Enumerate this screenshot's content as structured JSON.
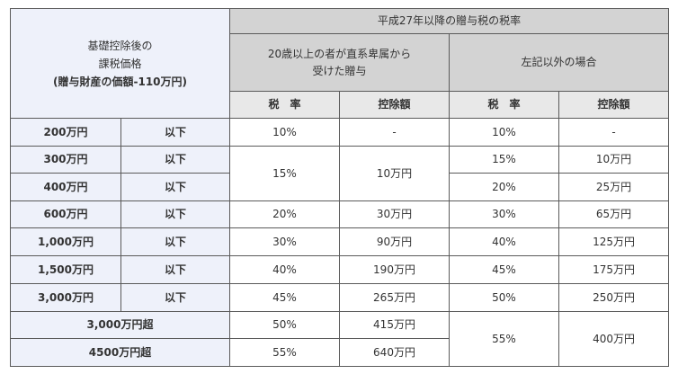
{
  "header": {
    "base_title_line1": "基礎控除後の",
    "base_title_line2": "課税価格",
    "base_title_line3": "(贈与財産の価額-110万円)",
    "top_title": "平成27年以降の贈与税の税率",
    "group_special_line1": "20歳以上の者が直系卑属から",
    "group_special_line2": "受けた贈与",
    "group_general": "左記以外の場合",
    "col_rate": "税　率",
    "col_deduction": "控除額"
  },
  "rows": [
    {
      "amount": "200万円",
      "limit": "以下",
      "s_rate": "10%",
      "s_ded": "-",
      "g_rate": "10%",
      "g_ded": "-"
    },
    {
      "amount": "300万円",
      "limit": "以下",
      "s_rate": "15%",
      "s_ded": "10万円",
      "g_rate": "15%",
      "g_ded": "10万円"
    },
    {
      "amount": "400万円",
      "limit": "以下",
      "g_rate": "20%",
      "g_ded": "25万円"
    },
    {
      "amount": "600万円",
      "limit": "以下",
      "s_rate": "20%",
      "s_ded": "30万円",
      "g_rate": "30%",
      "g_ded": "65万円"
    },
    {
      "amount": "1,000万円",
      "limit": "以下",
      "s_rate": "30%",
      "s_ded": "90万円",
      "g_rate": "40%",
      "g_ded": "125万円"
    },
    {
      "amount": "1,500万円",
      "limit": "以下",
      "s_rate": "40%",
      "s_ded": "190万円",
      "g_rate": "45%",
      "g_ded": "175万円"
    },
    {
      "amount": "3,000万円",
      "limit": "以下",
      "s_rate": "45%",
      "s_ded": "265万円",
      "g_rate": "50%",
      "g_ded": "250万円"
    },
    {
      "amount": "3,000万円超",
      "s_rate": "50%",
      "s_ded": "415万円",
      "g_rate": "55%",
      "g_ded": "400万円"
    },
    {
      "amount": "4500万円超",
      "s_rate": "55%",
      "s_ded": "640万円"
    }
  ]
}
